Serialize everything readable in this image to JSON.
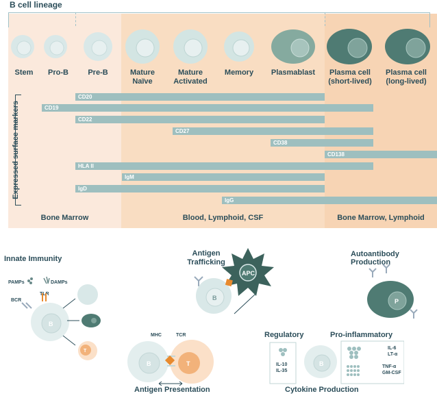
{
  "lineage_title": "B cell lineage",
  "stages": [
    {
      "label": "Stem",
      "label2": ""
    },
    {
      "label": "Pro-B",
      "label2": ""
    },
    {
      "label": "Pre-B",
      "label2": ""
    },
    {
      "label": "Mature",
      "label2": "Naïve"
    },
    {
      "label": "Mature",
      "label2": "Activated"
    },
    {
      "label": "Memory",
      "label2": ""
    },
    {
      "label": "Plasmablast",
      "label2": ""
    },
    {
      "label": "Plasma cell",
      "label2": "(short-lived)"
    },
    {
      "label": "Plasma cell",
      "label2": "(long-lived)"
    }
  ],
  "markers_label": "Expressed surface markers",
  "markers": [
    "CD20",
    "CD19",
    "CD22",
    "CD27",
    "CD38",
    "CD138",
    "HLA II",
    "IgM",
    "IgD",
    "IgG"
  ],
  "zones": [
    "Bone Marrow",
    "Blood, Lymphoid, CSF",
    "Bone Marrow, Lymphoid"
  ],
  "innate": {
    "title": "Innate Immunity",
    "pamps": "PAMPs",
    "damps": "DAMPs",
    "bcr": "BCR",
    "tlr": "TLR",
    "b": "B",
    "t": "T"
  },
  "antigen_trafficking": {
    "title1": "Antigen",
    "title2": "Trafficking",
    "apc": "APC",
    "b": "B"
  },
  "autoantibody": {
    "title": "Autoantibody Production",
    "p": "P"
  },
  "antigen_presentation": {
    "title": "Antigen Presentation",
    "mhc": "MHC",
    "tcr": "TCR",
    "b": "B",
    "t": "T"
  },
  "cytokine": {
    "title": "Cytokine Production",
    "regulatory": "Regulatory",
    "proinflammatory": "Pro-inflammatory",
    "il10": "IL-10",
    "il35": "IL-35",
    "il6": "IL-6",
    "lta": "LT-α",
    "tnfa": "TNF-α",
    "gmcsf": "GM-CSF",
    "b": "B"
  },
  "colors": {
    "bar": "#9ebfbf",
    "cell_light": "#d9e8e8",
    "cell_dark": "#4f7b73",
    "t_cell": "#f2b27a",
    "apc": "#3c625c",
    "diamond": "#e88a2e"
  }
}
